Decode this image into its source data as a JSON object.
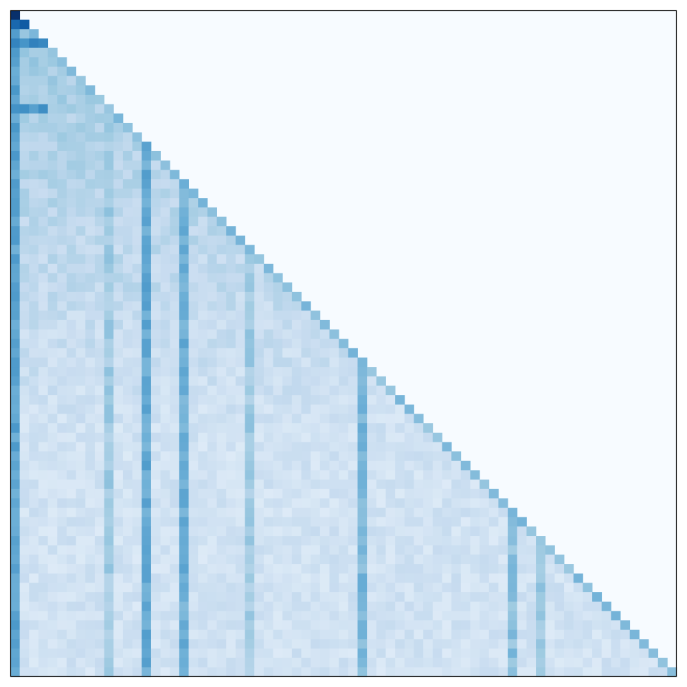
{
  "chart_data": {
    "type": "heatmap",
    "title": "",
    "xlabel": "",
    "ylabel": "",
    "n": 71,
    "triangle": "lower",
    "grid": false,
    "axis_ticks": false,
    "colormap": "Blues",
    "colors": {
      "scale_low": "#f7fbff",
      "scale_mid": "#6baed6",
      "scale_high": "#08306b",
      "frame": "#000000"
    },
    "value_range": [
      0,
      1
    ],
    "cmap_stops": [
      [
        0.0,
        "#f7fbff"
      ],
      [
        0.125,
        "#deebf7"
      ],
      [
        0.25,
        "#c6dbef"
      ],
      [
        0.375,
        "#9ecae1"
      ],
      [
        0.5,
        "#6baed6"
      ],
      [
        0.625,
        "#4292c6"
      ],
      [
        0.75,
        "#2171b5"
      ],
      [
        0.875,
        "#08519c"
      ],
      [
        1.0,
        "#08306b"
      ]
    ],
    "strong_columns": [
      {
        "col": 0,
        "value": 0.6
      },
      {
        "col": 10,
        "value": 0.42
      },
      {
        "col": 14,
        "value": 0.58
      },
      {
        "col": 18,
        "value": 0.56
      },
      {
        "col": 25,
        "value": 0.42
      },
      {
        "col": 37,
        "value": 0.52
      },
      {
        "col": 53,
        "value": 0.48
      },
      {
        "col": 56,
        "value": 0.44
      }
    ],
    "strong_rows": [
      {
        "row": 1,
        "value": 0.85
      },
      {
        "row": 3,
        "value": 0.7
      },
      {
        "row": 10,
        "value": 0.66
      }
    ],
    "diagonal_value": 0.38,
    "background_value": 0.13,
    "first_row_value": 1.0
  }
}
